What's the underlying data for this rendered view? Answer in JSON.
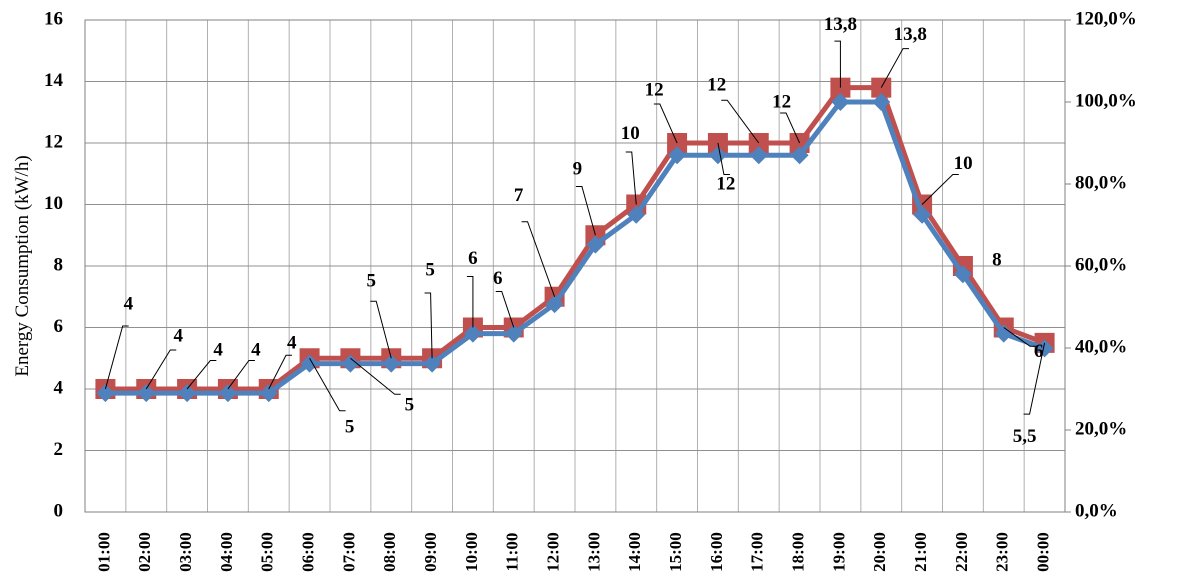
{
  "chart_data": {
    "type": "line",
    "y_label": "Energy Consumption (kW/h)",
    "categories": [
      "01:00",
      "02:00",
      "03:00",
      "04:00",
      "05:00",
      "06:00",
      "07:00",
      "08:00",
      "09:00",
      "10:00",
      "11:00",
      "12:00",
      "13:00",
      "14:00",
      "15:00",
      "16:00",
      "17:00",
      "18:00",
      "19:00",
      "20:00",
      "21:00",
      "22:00",
      "23:00",
      "00:00"
    ],
    "series": [
      {
        "color": "#c0504d",
        "marker": "square",
        "values": [
          4,
          4,
          4,
          4,
          4,
          5,
          5,
          5,
          5,
          6,
          6,
          7,
          9,
          10,
          12,
          12,
          12,
          12,
          13.8,
          13.8,
          10,
          8,
          6,
          5.5
        ],
        "value_labels": [
          "4",
          "4",
          "4",
          "4",
          "4",
          "5",
          "5",
          "5",
          "5",
          "6",
          "6",
          "7",
          "9",
          "10",
          "12",
          "12",
          "12",
          "12",
          "13,8",
          "13,8",
          "10",
          "8",
          "6",
          "5,5"
        ]
      },
      {
        "color": "#4f81bd",
        "marker": "diamond",
        "axis": "y2",
        "values": [
          29,
          29,
          29,
          29,
          29,
          36.2,
          36.2,
          36.2,
          36.2,
          43.5,
          43.5,
          50.7,
          65.2,
          72.5,
          87,
          87,
          87,
          87,
          100,
          100,
          72.5,
          58,
          43.5,
          39.9
        ]
      }
    ],
    "ylim": [
      0,
      16
    ],
    "yticks": [
      0,
      2,
      4,
      6,
      8,
      10,
      12,
      14,
      16
    ],
    "y2lim": [
      0,
      120
    ],
    "y2ticks": [
      {
        "value": 0,
        "label": "0,0%"
      },
      {
        "value": 20,
        "label": "20,0%"
      },
      {
        "value": 40,
        "label": "40,0%"
      },
      {
        "value": 60,
        "label": "60,0%"
      },
      {
        "value": 80,
        "label": "80,0%"
      },
      {
        "value": 100,
        "label": "100,0%"
      },
      {
        "value": 120,
        "label": "120,0%"
      }
    ],
    "grid": true
  }
}
